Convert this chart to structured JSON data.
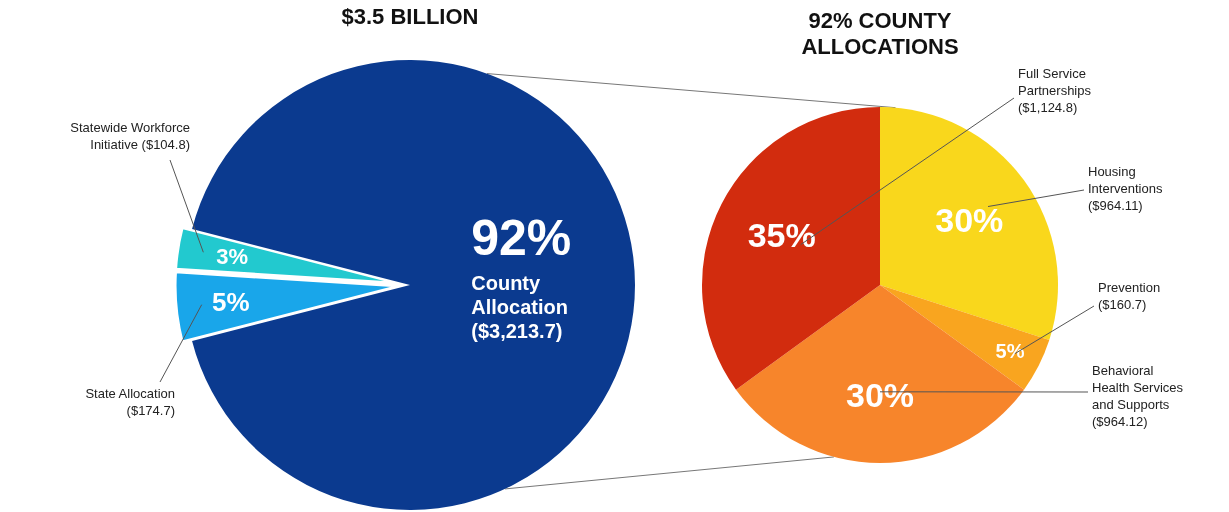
{
  "chart_data": [
    {
      "type": "pie",
      "title": "$3.5 BILLION",
      "categories": [
        "State Allocation ($174.7)",
        "Statewide Workforce Initiative ($104.8)",
        "County Allocation ($3,213.7)"
      ],
      "values": [
        5,
        3,
        92
      ],
      "value_labels": [
        "5%",
        "3%",
        "92%"
      ],
      "colors": [
        "#19a6ea",
        "#22c9cf",
        "#0b3a8f"
      ]
    },
    {
      "type": "pie",
      "title": "92% COUNTY ALLOCATIONS",
      "categories": [
        "Housing Interventions ($964.11)",
        "Prevention ($160.7)",
        "Behavioral Health Services and Supports ($964.12)",
        "Full Service Partnerships ($1,124.8)"
      ],
      "values": [
        30,
        5,
        30,
        35
      ],
      "value_labels": [
        "30%",
        "5%",
        "30%",
        "35%"
      ],
      "colors": [
        "#f9d71c",
        "#f9a51f",
        "#f7852b",
        "#d22c0e"
      ]
    }
  ]
}
